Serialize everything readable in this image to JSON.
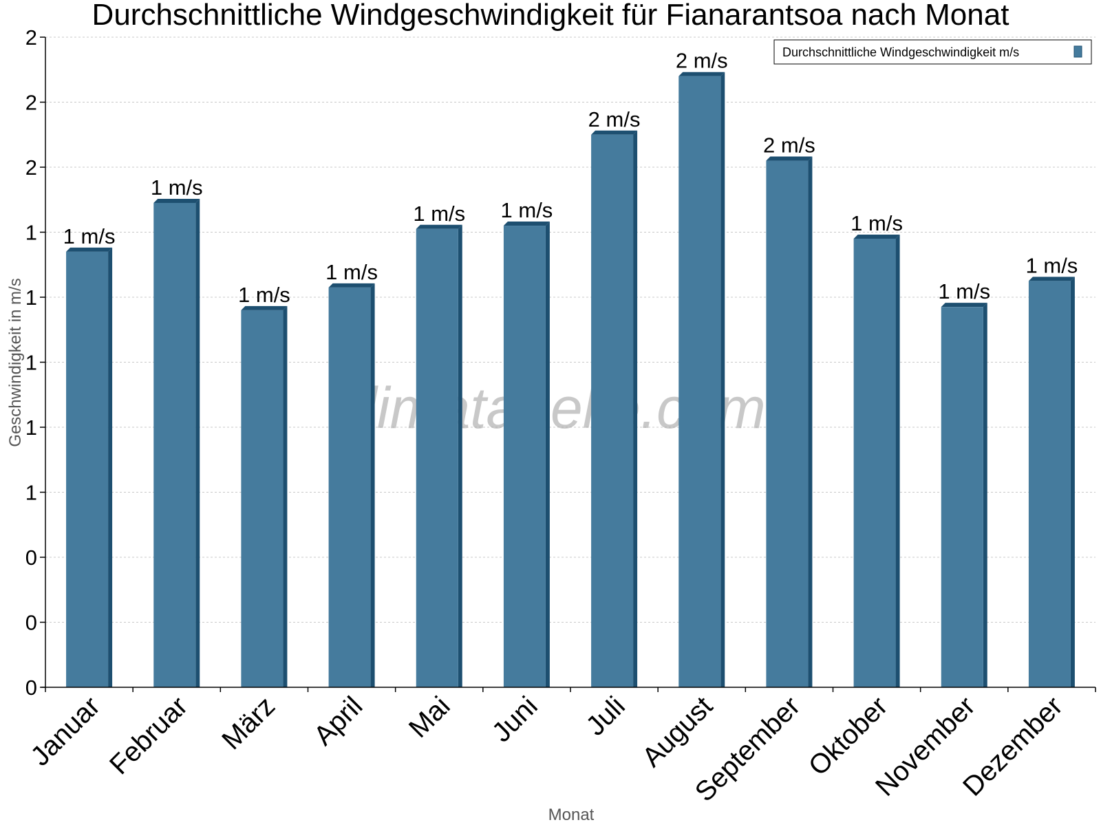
{
  "chart_data": {
    "type": "bar",
    "title": "Durchschnittliche Windgeschwindigkeit für Fianarantsoa nach Monat",
    "xlabel": "Monat",
    "ylabel": "Geschwindigkeit in m/s",
    "categories": [
      "Januar",
      "Februar",
      "März",
      "April",
      "Mai",
      "Juni",
      "Juli",
      "August",
      "September",
      "Oktober",
      "November",
      "Dezember"
    ],
    "series": [
      {
        "name": "Durchschnittliche Windgeschwindigkeit m/s",
        "values": [
          1.34,
          1.49,
          1.16,
          1.23,
          1.41,
          1.42,
          1.7,
          1.88,
          1.62,
          1.38,
          1.17,
          1.25
        ],
        "labels": [
          "1 m/s",
          "1 m/s",
          "1 m/s",
          "1 m/s",
          "1 m/s",
          "1 m/s",
          "2 m/s",
          "2 m/s",
          "2 m/s",
          "1 m/s",
          "1 m/s",
          "1 m/s"
        ],
        "color": "#457b9d"
      }
    ],
    "ylim": [
      0,
      2
    ],
    "yticks": [
      0,
      0.2,
      0.4,
      0.6,
      0.8,
      1.0,
      1.2,
      1.4,
      1.6,
      1.8,
      2.0
    ],
    "ytick_labels": [
      "0",
      "0",
      "0",
      "1",
      "1",
      "1",
      "1",
      "1",
      "2",
      "2",
      "2"
    ],
    "grid": true,
    "legend": "top-right",
    "watermark": "klimatabelle.com",
    "colors": {
      "bar": "#457b9d",
      "bar_side": "#1d4f70",
      "grid": "#c8c8c8",
      "axis": "#000000",
      "text": "#000000",
      "axis_title": "#555555"
    }
  }
}
